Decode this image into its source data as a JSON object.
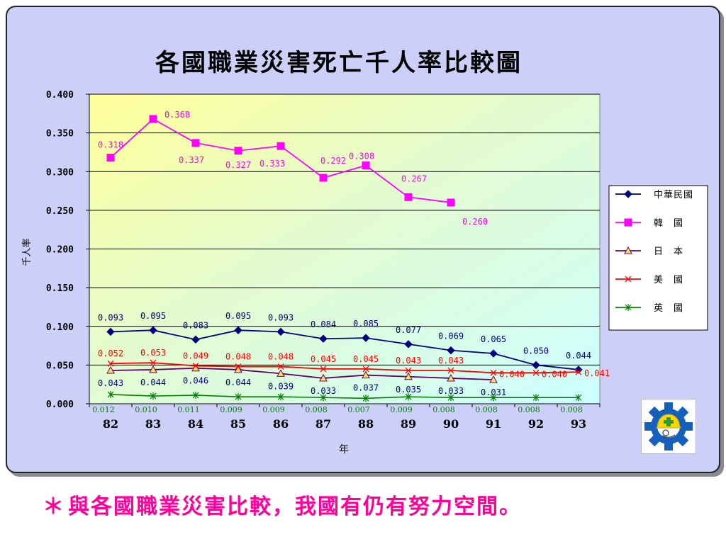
{
  "caption": {
    "star": "＊",
    "text": "與各國職業災害比較，我國有仍有努力空間。"
  },
  "badge": {
    "icon": "safety-gear-worker-icon"
  },
  "chart_data": {
    "type": "line",
    "title": "各國職業災害死亡千人率比較圖",
    "xlabel": "年",
    "ylabel": "千人率",
    "ylim": [
      0,
      0.4
    ],
    "yticks": [
      "0.000",
      "0.050",
      "0.100",
      "0.150",
      "0.200",
      "0.250",
      "0.300",
      "0.350",
      "0.400"
    ],
    "categories": [
      "82",
      "83",
      "84",
      "85",
      "86",
      "87",
      "88",
      "89",
      "90",
      "91",
      "92",
      "93"
    ],
    "grid": true,
    "legend_position": "right",
    "series": [
      {
        "name": "中華民國",
        "color": "#00007f",
        "marker": "diamond",
        "values": [
          0.093,
          0.095,
          0.083,
          0.095,
          0.093,
          0.084,
          0.085,
          0.077,
          0.069,
          0.065,
          0.05,
          0.044
        ],
        "labels": [
          "0.093",
          "0.095",
          "0.083",
          "0.095",
          "0.093",
          "0.084",
          "0.085",
          "0.077",
          "0.069",
          "0.065",
          "0.050",
          "0.044"
        ]
      },
      {
        "name": "韓　國",
        "color": "#ff00ff",
        "marker": "square",
        "values": [
          0.318,
          0.368,
          0.337,
          0.327,
          0.333,
          0.292,
          0.308,
          0.267,
          0.26,
          null,
          null,
          null
        ],
        "labels": [
          "0.318",
          "0.368",
          "0.337",
          "0.327",
          "0.333",
          "0.292",
          "0.308",
          "0.267",
          "0.260",
          null,
          null,
          null
        ]
      },
      {
        "name": "日　本",
        "color": "#660066",
        "marker": "triangle",
        "values": [
          0.043,
          0.044,
          0.046,
          0.044,
          0.039,
          0.033,
          0.037,
          0.035,
          0.033,
          0.031,
          null,
          null
        ],
        "labels": [
          "0.043",
          "0.044",
          "0.046",
          "0.044",
          "0.039",
          "0.033",
          "0.037",
          "0.035",
          "0.033",
          "0.031",
          null,
          null
        ]
      },
      {
        "name": "美　國",
        "color": "#ff0000",
        "marker": "x",
        "values": [
          0.052,
          0.053,
          0.049,
          0.048,
          0.048,
          0.045,
          0.045,
          0.043,
          0.043,
          0.04,
          0.04,
          0.041
        ],
        "labels": [
          "0.052",
          "0.053",
          "0.049",
          "0.048",
          "0.048",
          "0.045",
          "0.045",
          "0.043",
          "0.043",
          "0.040",
          "0.040",
          "0.041"
        ]
      },
      {
        "name": "英　國",
        "color": "#008000",
        "marker": "star",
        "values": [
          0.012,
          0.01,
          0.011,
          0.009,
          0.009,
          0.008,
          0.007,
          0.009,
          0.008,
          0.008,
          0.008,
          0.008
        ],
        "labels": [
          "0.012",
          "0.010",
          "0.011",
          "0.009",
          "0.009",
          "0.008",
          "0.007",
          "0.009",
          "0.008",
          "0.008",
          "0.008",
          "0.008"
        ]
      }
    ]
  }
}
